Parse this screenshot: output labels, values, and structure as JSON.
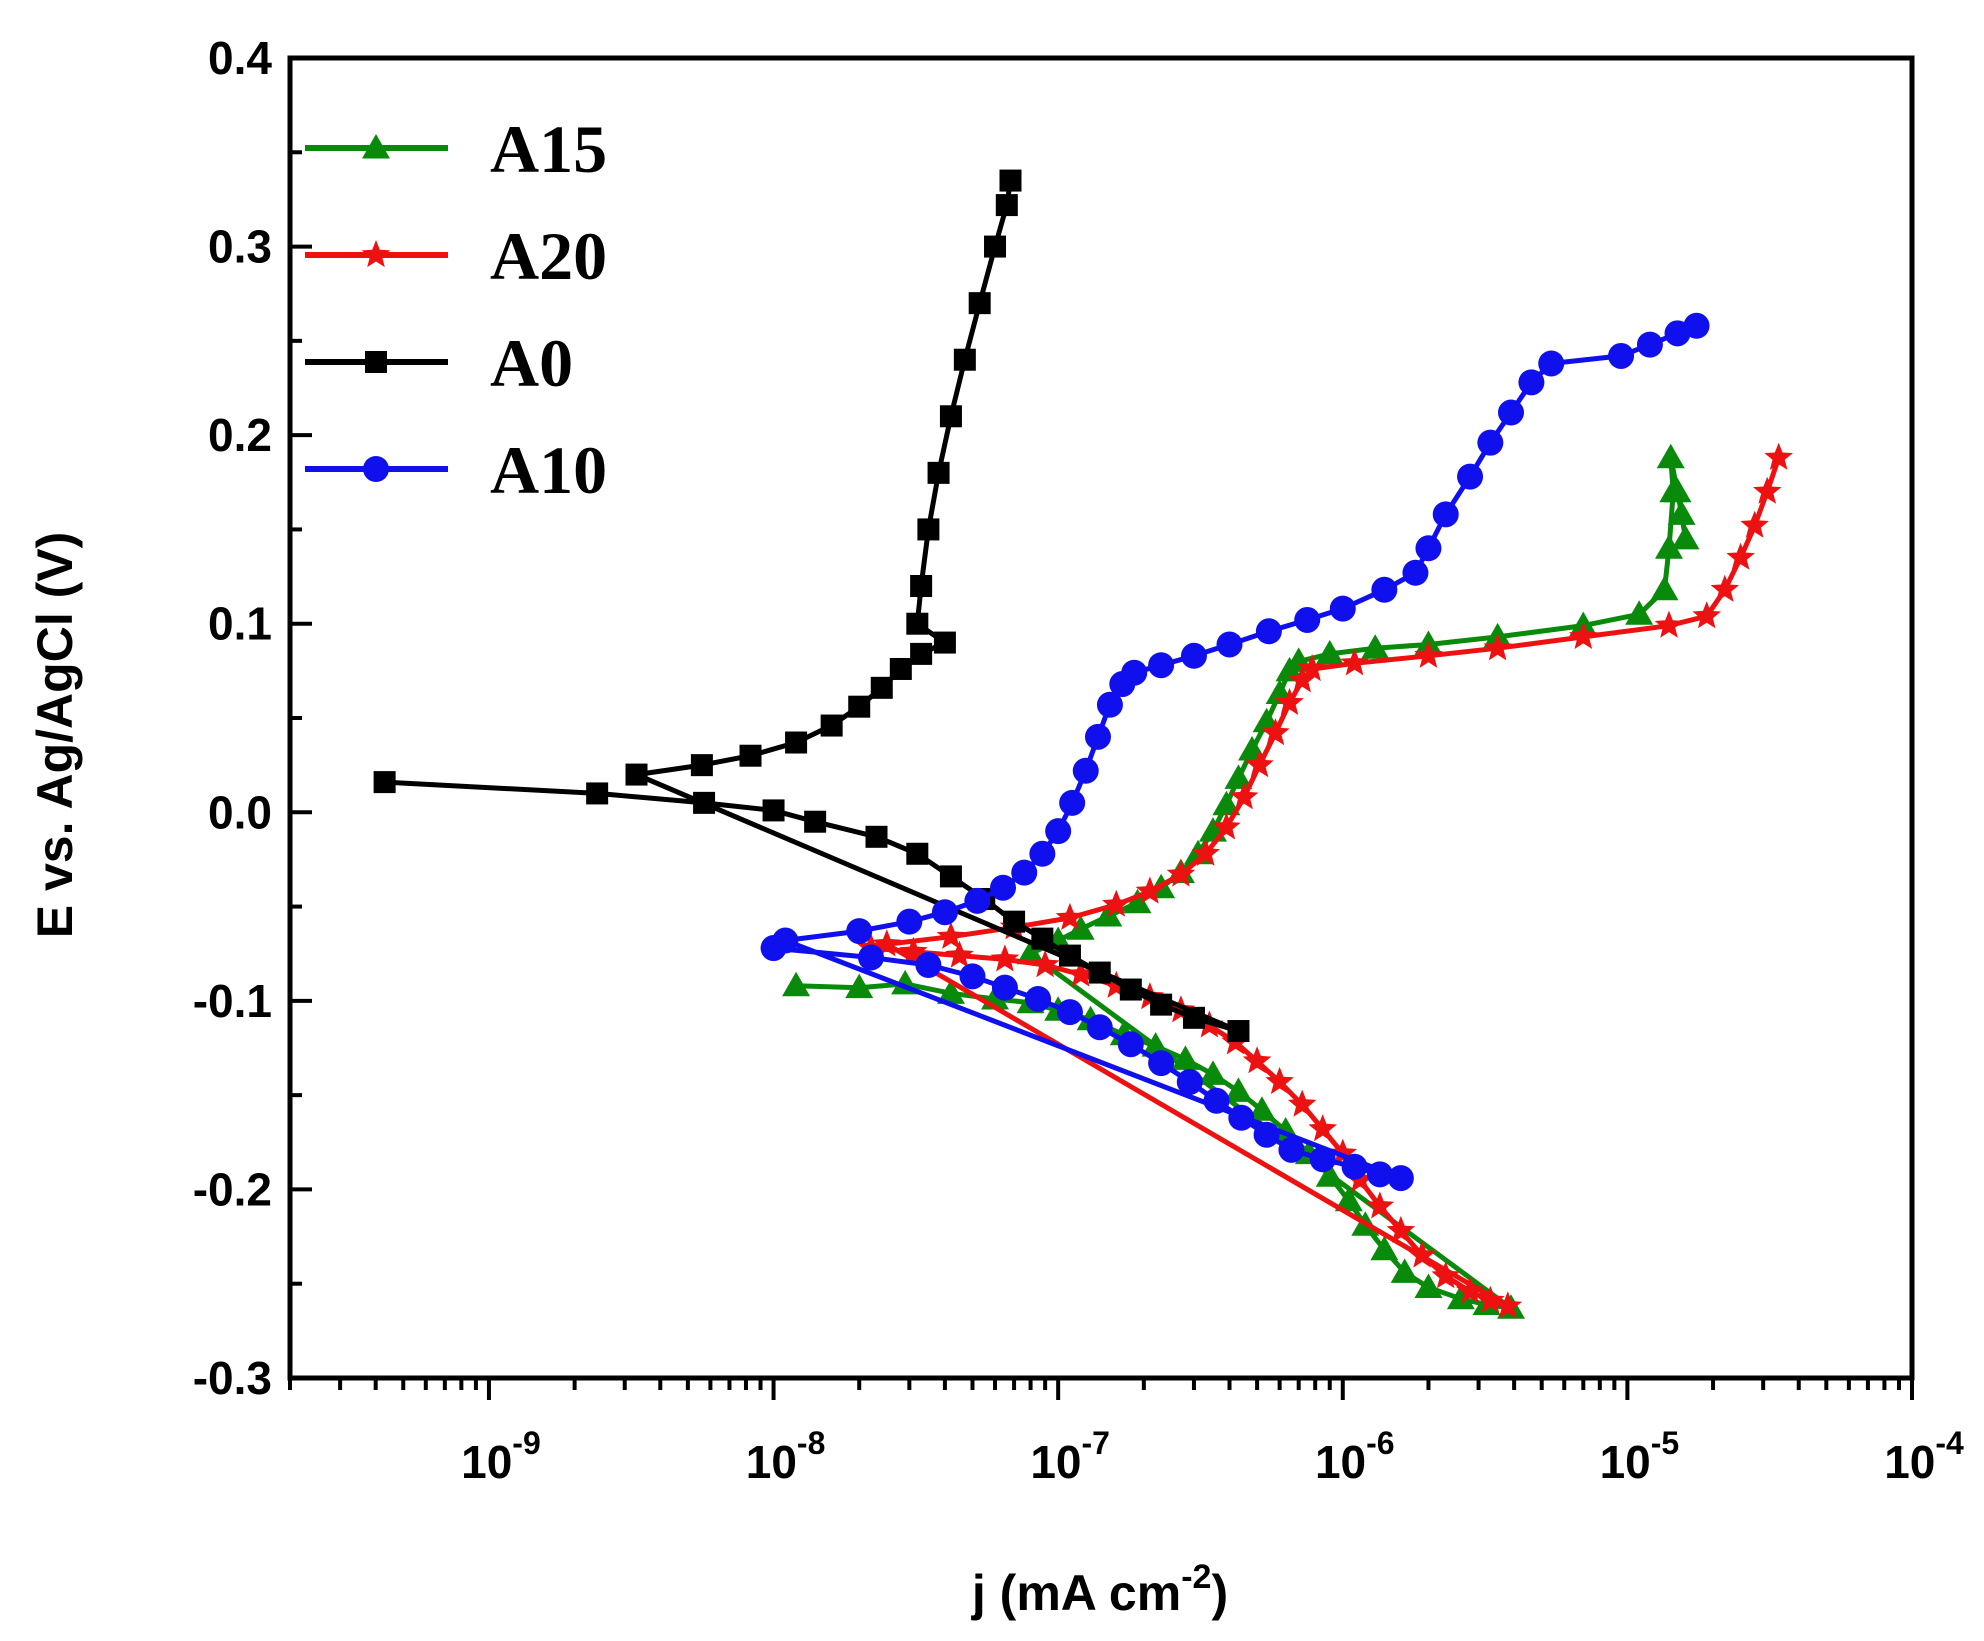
{
  "chart_data": {
    "type": "line",
    "title": "",
    "xlabel": {
      "base": "j (mA cm",
      "sup": "-2",
      "end": ")"
    },
    "ylabel": "E vs. Ag/AgCl (V)",
    "xscale": "log",
    "xlim": [
      2e-10,
      0.0001
    ],
    "ylim": [
      -0.3,
      0.4
    ],
    "grid": false,
    "legend_position": "top-left",
    "x_ticks": [
      {
        "value": 1e-09,
        "base": "10",
        "exp": "-9"
      },
      {
        "value": 1e-08,
        "base": "10",
        "exp": "-8"
      },
      {
        "value": 1e-07,
        "base": "10",
        "exp": "-7"
      },
      {
        "value": 1e-06,
        "base": "10",
        "exp": "-6"
      },
      {
        "value": 1e-05,
        "base": "10",
        "exp": "-5"
      },
      {
        "value": 0.0001,
        "base": "10",
        "exp": "-4"
      }
    ],
    "y_ticks": [
      {
        "value": 0.4,
        "label": "0.4"
      },
      {
        "value": 0.3,
        "label": "0.3"
      },
      {
        "value": 0.2,
        "label": "0.2"
      },
      {
        "value": 0.1,
        "label": "0.1"
      },
      {
        "value": 0.0,
        "label": "0.0"
      },
      {
        "value": -0.1,
        "label": "-0.1"
      },
      {
        "value": -0.2,
        "label": "-0.2"
      },
      {
        "value": -0.3,
        "label": "-0.3"
      }
    ],
    "series": [
      {
        "name": "A15",
        "color": "#0a8a0a",
        "marker": "triangle",
        "points": [
          [
            1.2e-08,
            -0.092
          ],
          [
            2e-08,
            -0.093
          ],
          [
            2.9e-08,
            -0.091
          ],
          [
            4.2e-08,
            -0.096
          ],
          [
            6e-08,
            -0.099
          ],
          [
            8e-08,
            -0.101
          ],
          [
            1e-07,
            -0.105
          ],
          [
            1.3e-07,
            -0.11
          ],
          [
            1.7e-07,
            -0.118
          ],
          [
            2.2e-07,
            -0.124
          ],
          [
            2.8e-07,
            -0.131
          ],
          [
            3.5e-07,
            -0.139
          ],
          [
            4.3e-07,
            -0.148
          ],
          [
            5.2e-07,
            -0.158
          ],
          [
            6.3e-07,
            -0.169
          ],
          [
            7.6e-07,
            -0.181
          ],
          [
            9e-07,
            -0.193
          ],
          [
            1.05e-06,
            -0.206
          ],
          [
            1.2e-06,
            -0.219
          ],
          [
            1.4e-06,
            -0.232
          ],
          [
            1.65e-06,
            -0.244
          ],
          [
            2e-06,
            -0.252
          ],
          [
            2.6e-06,
            -0.258
          ],
          [
            3.2e-06,
            -0.261
          ],
          [
            3.9e-06,
            -0.263
          ],
          [
            8e-08,
            -0.075
          ],
          [
            1e-07,
            -0.068
          ],
          [
            1.2e-07,
            -0.062
          ],
          [
            1.5e-07,
            -0.055
          ],
          [
            1.9e-07,
            -0.048
          ],
          [
            2.3e-07,
            -0.04
          ],
          [
            2.7e-07,
            -0.032
          ],
          [
            3.1e-07,
            -0.022
          ],
          [
            3.5e-07,
            -0.01
          ],
          [
            3.9e-07,
            0.004
          ],
          [
            4.3e-07,
            0.018
          ],
          [
            4.8e-07,
            0.033
          ],
          [
            5.4e-07,
            0.048
          ],
          [
            6e-07,
            0.063
          ],
          [
            6.5e-07,
            0.075
          ],
          [
            7e-07,
            0.08
          ],
          [
            9e-07,
            0.084
          ],
          [
            1.3e-06,
            0.087
          ],
          [
            2e-06,
            0.089
          ],
          [
            3.5e-06,
            0.093
          ],
          [
            7e-06,
            0.099
          ],
          [
            1.1e-05,
            0.105
          ],
          [
            1.35e-05,
            0.118
          ],
          [
            1.4e-05,
            0.14
          ],
          [
            1.45e-05,
            0.17
          ],
          [
            1.42e-05,
            0.188
          ],
          [
            1.5e-05,
            0.17
          ],
          [
            1.55e-05,
            0.158
          ],
          [
            1.6e-05,
            0.145
          ]
        ]
      },
      {
        "name": "A20",
        "color": "#ee1111",
        "marker": "star",
        "points": [
          [
            2.2e-08,
            -0.072
          ],
          [
            3.1e-08,
            -0.074
          ],
          [
            4.5e-08,
            -0.076
          ],
          [
            6.5e-08,
            -0.078
          ],
          [
            9e-08,
            -0.081
          ],
          [
            1.2e-07,
            -0.086
          ],
          [
            1.6e-07,
            -0.092
          ],
          [
            2.1e-07,
            -0.098
          ],
          [
            2.7e-07,
            -0.105
          ],
          [
            3.4e-07,
            -0.113
          ],
          [
            4.2e-07,
            -0.122
          ],
          [
            5e-07,
            -0.132
          ],
          [
            6e-07,
            -0.143
          ],
          [
            7.2e-07,
            -0.155
          ],
          [
            8.5e-07,
            -0.168
          ],
          [
            1e-06,
            -0.181
          ],
          [
            1.15e-06,
            -0.195
          ],
          [
            1.35e-06,
            -0.209
          ],
          [
            1.6e-06,
            -0.222
          ],
          [
            1.9e-06,
            -0.235
          ],
          [
            2.3e-06,
            -0.246
          ],
          [
            2.8e-06,
            -0.254
          ],
          [
            3.3e-06,
            -0.259
          ],
          [
            3.8e-06,
            -0.262
          ],
          [
            2.5e-08,
            -0.07
          ],
          [
            4.2e-08,
            -0.066
          ],
          [
            7e-08,
            -0.061
          ],
          [
            1.1e-07,
            -0.056
          ],
          [
            1.6e-07,
            -0.049
          ],
          [
            2.1e-07,
            -0.042
          ],
          [
            2.7e-07,
            -0.033
          ],
          [
            3.3e-07,
            -0.022
          ],
          [
            3.9e-07,
            -0.008
          ],
          [
            4.5e-07,
            0.008
          ],
          [
            5.1e-07,
            0.025
          ],
          [
            5.8e-07,
            0.042
          ],
          [
            6.5e-07,
            0.058
          ],
          [
            7.2e-07,
            0.07
          ],
          [
            7.8e-07,
            0.076
          ],
          [
            1.1e-06,
            0.079
          ],
          [
            2e-06,
            0.083
          ],
          [
            3.5e-06,
            0.087
          ],
          [
            7e-06,
            0.093
          ],
          [
            1.4e-05,
            0.099
          ],
          [
            1.9e-05,
            0.104
          ],
          [
            2.2e-05,
            0.118
          ],
          [
            2.5e-05,
            0.135
          ],
          [
            2.8e-05,
            0.152
          ],
          [
            3.1e-05,
            0.17
          ],
          [
            3.4e-05,
            0.188
          ]
        ]
      },
      {
        "name": "A0",
        "color": "#000000",
        "marker": "square",
        "points": [
          [
            4.3e-10,
            0.016
          ],
          [
            2.4e-09,
            0.01
          ],
          [
            5.7e-09,
            0.005
          ],
          [
            1e-08,
            0.001
          ],
          [
            1.4e-08,
            -0.005
          ],
          [
            2.3e-08,
            -0.013
          ],
          [
            3.2e-08,
            -0.022
          ],
          [
            4.2e-08,
            -0.034
          ],
          [
            5.5e-08,
            -0.046
          ],
          [
            7e-08,
            -0.058
          ],
          [
            8.8e-08,
            -0.067
          ],
          [
            1.1e-07,
            -0.076
          ],
          [
            1.4e-07,
            -0.085
          ],
          [
            1.8e-07,
            -0.094
          ],
          [
            2.3e-07,
            -0.102
          ],
          [
            3e-07,
            -0.109
          ],
          [
            4.3e-07,
            -0.116
          ],
          [
            3.3e-09,
            0.02
          ],
          [
            5.6e-09,
            0.025
          ],
          [
            8.3e-09,
            0.03
          ],
          [
            1.2e-08,
            0.037
          ],
          [
            1.6e-08,
            0.046
          ],
          [
            2e-08,
            0.056
          ],
          [
            2.4e-08,
            0.066
          ],
          [
            2.8e-08,
            0.076
          ],
          [
            3.3e-08,
            0.084
          ],
          [
            4e-08,
            0.09
          ],
          [
            3.2e-08,
            0.1
          ],
          [
            3.3e-08,
            0.12
          ],
          [
            3.5e-08,
            0.15
          ],
          [
            3.8e-08,
            0.18
          ],
          [
            4.2e-08,
            0.21
          ],
          [
            4.7e-08,
            0.24
          ],
          [
            5.3e-08,
            0.27
          ],
          [
            6e-08,
            0.3
          ],
          [
            6.6e-08,
            0.322
          ],
          [
            6.8e-08,
            0.335
          ]
        ]
      },
      {
        "name": "A10",
        "color": "#1010ee",
        "marker": "circle",
        "points": [
          [
            1e-08,
            -0.072
          ],
          [
            2.2e-08,
            -0.077
          ],
          [
            3.5e-08,
            -0.081
          ],
          [
            5e-08,
            -0.087
          ],
          [
            6.5e-08,
            -0.093
          ],
          [
            8.5e-08,
            -0.099
          ],
          [
            1.1e-07,
            -0.106
          ],
          [
            1.4e-07,
            -0.114
          ],
          [
            1.8e-07,
            -0.123
          ],
          [
            2.3e-07,
            -0.133
          ],
          [
            2.9e-07,
            -0.143
          ],
          [
            3.6e-07,
            -0.153
          ],
          [
            4.4e-07,
            -0.162
          ],
          [
            5.4e-07,
            -0.171
          ],
          [
            6.6e-07,
            -0.179
          ],
          [
            8.5e-07,
            -0.184
          ],
          [
            1.1e-06,
            -0.188
          ],
          [
            1.35e-06,
            -0.192
          ],
          [
            1.6e-06,
            -0.194
          ],
          [
            1.1e-08,
            -0.068
          ],
          [
            2e-08,
            -0.063
          ],
          [
            3e-08,
            -0.058
          ],
          [
            4e-08,
            -0.053
          ],
          [
            5.2e-08,
            -0.047
          ],
          [
            6.4e-08,
            -0.04
          ],
          [
            7.6e-08,
            -0.032
          ],
          [
            8.8e-08,
            -0.022
          ],
          [
            1e-07,
            -0.01
          ],
          [
            1.12e-07,
            0.005
          ],
          [
            1.25e-07,
            0.022
          ],
          [
            1.38e-07,
            0.04
          ],
          [
            1.52e-07,
            0.057
          ],
          [
            1.68e-07,
            0.068
          ],
          [
            1.85e-07,
            0.074
          ],
          [
            2.3e-07,
            0.078
          ],
          [
            3e-07,
            0.083
          ],
          [
            4e-07,
            0.089
          ],
          [
            5.5e-07,
            0.096
          ],
          [
            7.5e-07,
            0.102
          ],
          [
            1e-06,
            0.108
          ],
          [
            1.4e-06,
            0.118
          ],
          [
            1.8e-06,
            0.127
          ],
          [
            2e-06,
            0.14
          ],
          [
            2.3e-06,
            0.158
          ],
          [
            2.8e-06,
            0.178
          ],
          [
            3.3e-06,
            0.196
          ],
          [
            3.9e-06,
            0.212
          ],
          [
            4.6e-06,
            0.228
          ],
          [
            5.4e-06,
            0.238
          ],
          [
            9.5e-06,
            0.242
          ],
          [
            1.2e-05,
            0.248
          ],
          [
            1.5e-05,
            0.254
          ],
          [
            1.75e-05,
            0.258
          ]
        ]
      }
    ]
  }
}
